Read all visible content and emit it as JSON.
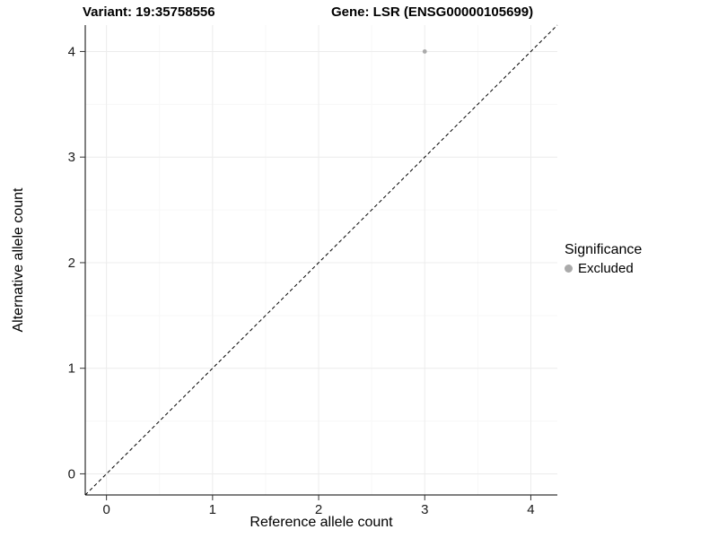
{
  "chart_data": {
    "type": "scatter",
    "title_left": "Variant: 19:35758556",
    "title_right": "Gene: LSR (ENSG00000105699)",
    "xlabel": "Reference allele count",
    "ylabel": "Alternative allele count",
    "xlim": [
      -0.2,
      4.25
    ],
    "ylim": [
      -0.2,
      4.25
    ],
    "xticks": [
      0,
      1,
      2,
      3,
      4
    ],
    "yticks": [
      0,
      1,
      2,
      3,
      4
    ],
    "grid": true,
    "legend_position": "right",
    "points": [
      {
        "x": 3,
        "y": 4,
        "series": "Excluded"
      }
    ],
    "identity_line": {
      "style": "dashed",
      "from": [
        -0.2,
        -0.2
      ],
      "to": [
        4.25,
        4.25
      ]
    },
    "legend": {
      "title": "Significance",
      "items": [
        {
          "label": "Excluded",
          "color": "#aaaaaa"
        }
      ]
    },
    "colors": {
      "point": "#aaaaaa",
      "line": "#000000",
      "grid_major": "#ececec",
      "grid_minor": "#f7f7f7",
      "axis": "#000000",
      "tick_text": "#1a1a1a"
    }
  }
}
